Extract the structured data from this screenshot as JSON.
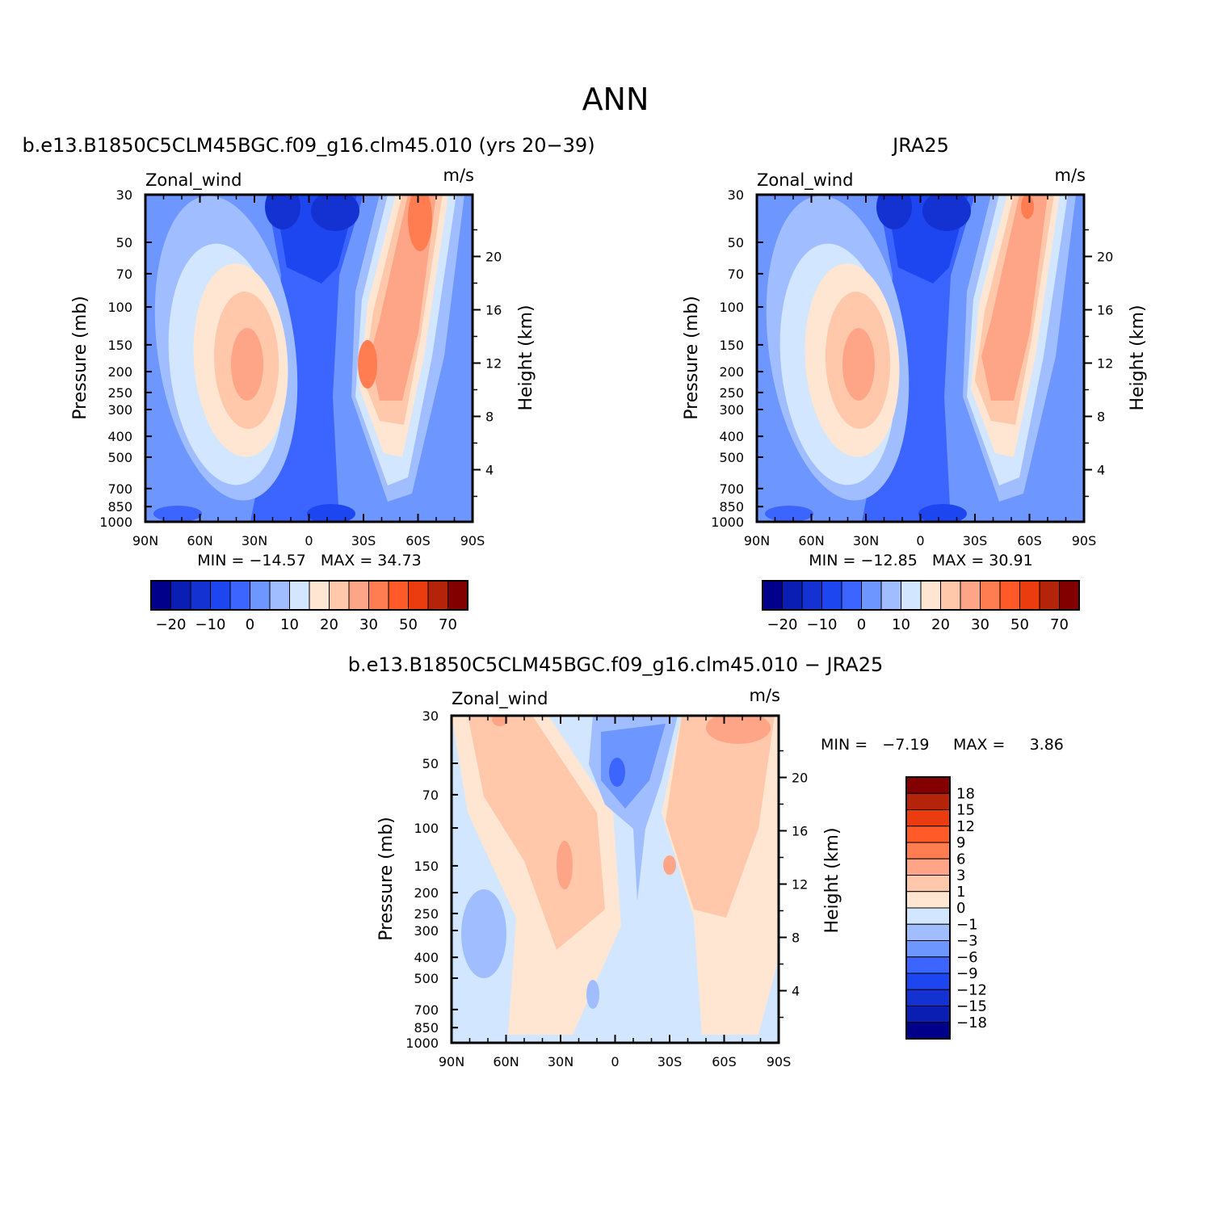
{
  "main_title": "ANN",
  "colors": {
    "full": [
      "#00008b",
      "#0a1eb4",
      "#1432d2",
      "#1e46f0",
      "#3c64ff",
      "#6e96ff",
      "#a0beff",
      "#d2e6ff",
      "#ffe6d2",
      "#ffc8aa",
      "#ffa587",
      "#ff7d50",
      "#ff5a28",
      "#eb3c0f",
      "#b4240a",
      "#820000"
    ],
    "diff": [
      "#00008b",
      "#0a1eb4",
      "#1432d2",
      "#1e46f0",
      "#3c64ff",
      "#6e96ff",
      "#a0beff",
      "#d2e6ff",
      "#ffe6d2",
      "#ffc8aa",
      "#ffa587",
      "#ff7d50",
      "#ff5a28",
      "#eb3c0f",
      "#b4240a",
      "#820000"
    ]
  },
  "chart_data": [
    {
      "type": "heatmap",
      "panel_title": "b.e13.B1850C5CLM45BGC.f09_g16.clm45.010 (yrs 20−39)",
      "left_label": "Zonal_wind",
      "right_label": "m/s",
      "ylabel": "Pressure (mb)",
      "ylabel_right": "Height (km)",
      "xticks": [
        "90N",
        "60N",
        "30N",
        "0",
        "30S",
        "60S",
        "90S"
      ],
      "yticks": [
        "30",
        "50",
        "70",
        "100",
        "150",
        "200",
        "250",
        "300",
        "400",
        "500",
        "700",
        "850",
        "1000"
      ],
      "height_ticks": [
        "20",
        "16",
        "12",
        "8",
        "4"
      ],
      "min_max": "MIN = −14.57   MAX = 34.73",
      "colorbar_labels": [
        "−20",
        "−10",
        "0",
        "10",
        "20",
        "30",
        "50",
        "70"
      ],
      "features": {
        "nh_jet_max": 25,
        "sh_jet_max": 34.73,
        "strat_easterly_min": -14.57
      }
    },
    {
      "type": "heatmap",
      "panel_title": "JRA25",
      "left_label": "Zonal_wind",
      "right_label": "m/s",
      "ylabel": "Pressure (mb)",
      "ylabel_right": "Height (km)",
      "xticks": [
        "90N",
        "60N",
        "30N",
        "0",
        "30S",
        "60S",
        "90S"
      ],
      "yticks": [
        "30",
        "50",
        "70",
        "100",
        "150",
        "200",
        "250",
        "300",
        "400",
        "500",
        "700",
        "850",
        "1000"
      ],
      "height_ticks": [
        "20",
        "16",
        "12",
        "8",
        "4"
      ],
      "min_max": "MIN = −12.85   MAX = 30.91",
      "colorbar_labels": [
        "−20",
        "−10",
        "0",
        "10",
        "20",
        "30",
        "50",
        "70"
      ],
      "features": {
        "nh_jet_max": 25,
        "sh_jet_max": 30.91,
        "strat_easterly_min": -12.85
      }
    },
    {
      "type": "heatmap",
      "panel_title": "b.e13.B1850C5CLM45BGC.f09_g16.clm45.010 − JRA25",
      "left_label": "Zonal_wind",
      "right_label": "m/s",
      "ylabel": "Pressure (mb)",
      "ylabel_right": "Height (km)",
      "xticks": [
        "90N",
        "60N",
        "30N",
        "0",
        "30S",
        "60S",
        "90S"
      ],
      "yticks": [
        "30",
        "50",
        "70",
        "100",
        "150",
        "200",
        "250",
        "300",
        "400",
        "500",
        "700",
        "850",
        "1000"
      ],
      "height_ticks": [
        "20",
        "16",
        "12",
        "8",
        "4"
      ],
      "min_max_min": "MIN =   −7.19",
      "min_max_max": "MAX =     3.86",
      "colorbar_labels": [
        "18",
        "15",
        "12",
        "9",
        "6",
        "3",
        "1",
        "0",
        "−1",
        "−3",
        "−6",
        "−9",
        "−12",
        "−15",
        "−18"
      ]
    }
  ]
}
